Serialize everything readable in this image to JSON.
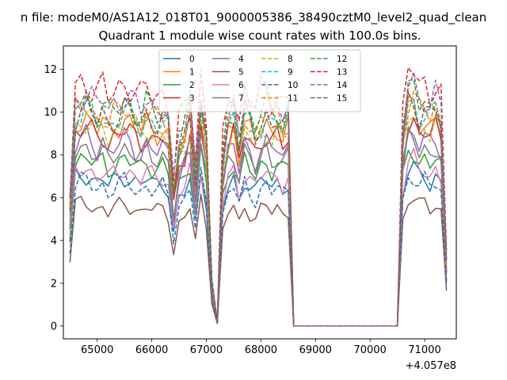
{
  "suptitle": "n file: modeM0/AS1A12_018T01_9000005386_38490cztM0_level2_quad_clean",
  "chart_data": {
    "type": "line",
    "title": "Quadrant 1 module wise count rates with 100.0s bins.",
    "xlabel": "",
    "ylabel": "",
    "x_offset_label": "+4.057e8",
    "xlim": [
      64380,
      71580
    ],
    "ylim": [
      -0.6,
      13.1
    ],
    "xticks": [
      65000,
      66000,
      67000,
      68000,
      69000,
      70000,
      71000
    ],
    "yticks": [
      0,
      2,
      4,
      6,
      8,
      10,
      12
    ],
    "grid": false,
    "legend": {
      "position": "top-center",
      "columns": 4
    },
    "x": [
      64500,
      64600,
      64700,
      64800,
      64900,
      65000,
      65100,
      65200,
      65300,
      65400,
      65500,
      65600,
      65700,
      65800,
      65900,
      66000,
      66100,
      66200,
      66300,
      66400,
      66500,
      66600,
      66700,
      66800,
      66900,
      67000,
      67100,
      67200,
      67300,
      67400,
      67500,
      67600,
      67700,
      67800,
      67900,
      68000,
      68100,
      68200,
      68300,
      68400,
      68500,
      68600,
      68700,
      68800,
      68900,
      69000,
      69100,
      69200,
      69300,
      69400,
      69500,
      69600,
      69700,
      69800,
      69900,
      70000,
      70100,
      70200,
      70300,
      70400,
      70500,
      70600,
      70700,
      70800,
      70900,
      71000,
      71100,
      71200,
      71300,
      71400
    ],
    "series": [
      {
        "name": "0",
        "color": "#1f77b4",
        "dashed": false,
        "base": 6.9
      },
      {
        "name": "1",
        "color": "#ff7f0e",
        "dashed": false,
        "base": 9.5
      },
      {
        "name": "2",
        "color": "#2ca02c",
        "dashed": false,
        "base": 7.7
      },
      {
        "name": "3",
        "color": "#d62728",
        "dashed": false,
        "base": 9.0
      },
      {
        "name": "4",
        "color": "#9467bd",
        "dashed": false,
        "base": 8.5
      },
      {
        "name": "5",
        "color": "#8c564b",
        "dashed": false,
        "base": 5.6
      },
      {
        "name": "6",
        "color": "#e377c2",
        "dashed": false,
        "base": 7.2
      },
      {
        "name": "7",
        "color": "#7f7f7f",
        "dashed": false,
        "base": 8.2
      },
      {
        "name": "8",
        "color": "#bcbd22",
        "dashed": true,
        "base": 9.3
      },
      {
        "name": "9",
        "color": "#17becf",
        "dashed": true,
        "base": 9.8
      },
      {
        "name": "10",
        "color": "#1f77b4",
        "dashed": true,
        "base": 6.6
      },
      {
        "name": "11",
        "color": "#ff7f0e",
        "dashed": true,
        "base": 10.0
      },
      {
        "name": "12",
        "color": "#2ca02c",
        "dashed": true,
        "base": 10.3
      },
      {
        "name": "13",
        "color": "#d62728",
        "dashed": true,
        "base": 11.2
      },
      {
        "name": "14",
        "color": "#9467bd",
        "dashed": true,
        "base": 10.6
      },
      {
        "name": "15",
        "color": "#8c564b",
        "dashed": true,
        "base": 9.9
      }
    ],
    "shape": [
      0.55,
      1.0,
      1.02,
      1.03,
      1.0,
      0.97,
      1.0,
      0.95,
      0.98,
      1.0,
      1.02,
      1.0,
      0.97,
      0.95,
      1.0,
      0.97,
      0.96,
      0.98,
      0.93,
      0.62,
      0.85,
      0.9,
      1.0,
      0.7,
      1.05,
      0.85,
      0.2,
      0.02,
      0.78,
      0.95,
      1.0,
      0.85,
      1.0,
      0.95,
      0.9,
      0.97,
      1.0,
      0.95,
      0.98,
      0.93,
      0.97,
      0,
      0,
      0,
      0,
      0,
      0,
      0,
      0,
      0,
      0,
      0,
      0,
      0,
      0,
      0,
      0,
      0,
      0,
      0,
      0,
      0.88,
      1.06,
      1.07,
      1.0,
      1.02,
      0.98,
      1.02,
      0.96,
      0.3
    ]
  }
}
